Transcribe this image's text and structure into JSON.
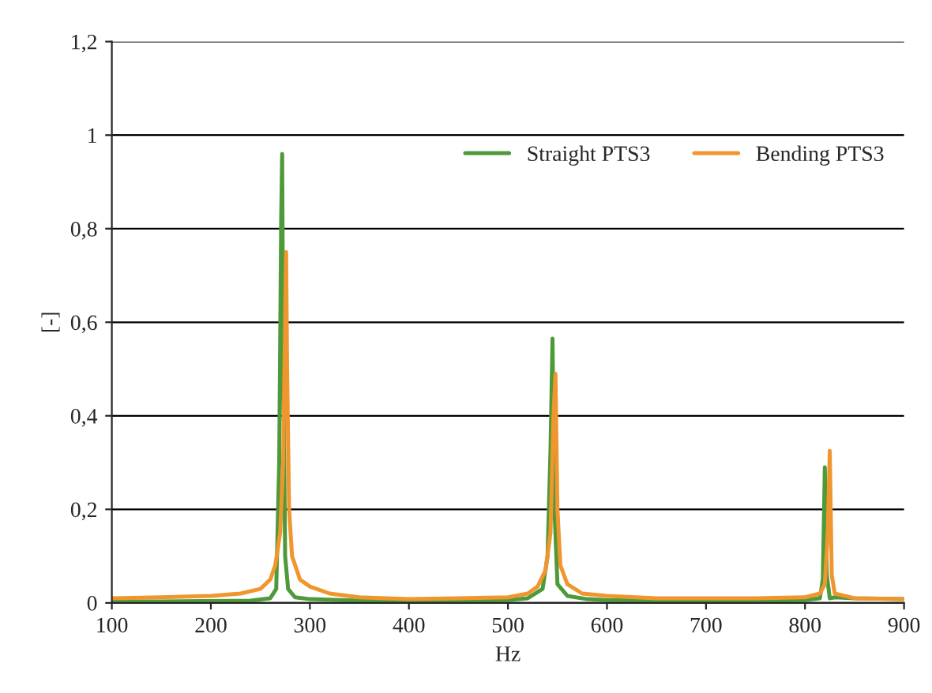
{
  "chart_data": {
    "type": "line",
    "xlabel": "Hz",
    "ylabel": "[-]",
    "xlim": [
      100,
      900
    ],
    "ylim": [
      0,
      1.2
    ],
    "xticks": [
      100,
      200,
      300,
      400,
      500,
      600,
      700,
      800,
      900
    ],
    "yticks": [
      {
        "value": 0,
        "label": "0"
      },
      {
        "value": 0.2,
        "label": "0,2"
      },
      {
        "value": 0.4,
        "label": "0,4"
      },
      {
        "value": 0.6,
        "label": "0,6"
      },
      {
        "value": 0.8,
        "label": "0,8"
      },
      {
        "value": 1,
        "label": "1"
      },
      {
        "value": 1.2,
        "label": "1,2"
      }
    ],
    "grid": "y",
    "legend": "top right",
    "marker": "none",
    "line_style": "solid",
    "series": [
      {
        "name": "Straight PTS3",
        "color": "#4e9a3a",
        "x": [
          100,
          150,
          200,
          240,
          260,
          266,
          269,
          271,
          272,
          273,
          275,
          278,
          285,
          300,
          350,
          400,
          450,
          500,
          520,
          535,
          540,
          543,
          545,
          547,
          550,
          560,
          580,
          600,
          650,
          700,
          750,
          800,
          815,
          818,
          820,
          822,
          825,
          830,
          850,
          900
        ],
        "values": [
          0.003,
          0.003,
          0.004,
          0.005,
          0.01,
          0.03,
          0.3,
          0.82,
          0.96,
          0.55,
          0.1,
          0.03,
          0.012,
          0.008,
          0.005,
          0.003,
          0.005,
          0.006,
          0.01,
          0.03,
          0.1,
          0.33,
          0.565,
          0.2,
          0.04,
          0.015,
          0.008,
          0.006,
          0.005,
          0.005,
          0.005,
          0.006,
          0.01,
          0.05,
          0.29,
          0.06,
          0.01,
          0.012,
          0.01,
          0.008
        ]
      },
      {
        "name": "Bending PTS3",
        "color": "#f0962e",
        "x": [
          100,
          150,
          200,
          230,
          250,
          260,
          265,
          270,
          273,
          275,
          276,
          277,
          279,
          282,
          290,
          300,
          320,
          350,
          400,
          450,
          500,
          520,
          530,
          538,
          543,
          546,
          548,
          550,
          553,
          560,
          575,
          600,
          650,
          700,
          750,
          800,
          815,
          820,
          823,
          825,
          827,
          830,
          850,
          900
        ],
        "values": [
          0.01,
          0.012,
          0.015,
          0.02,
          0.03,
          0.05,
          0.08,
          0.15,
          0.3,
          0.6,
          0.75,
          0.5,
          0.2,
          0.1,
          0.05,
          0.035,
          0.02,
          0.012,
          0.008,
          0.01,
          0.012,
          0.02,
          0.035,
          0.07,
          0.15,
          0.4,
          0.49,
          0.2,
          0.08,
          0.04,
          0.02,
          0.015,
          0.01,
          0.01,
          0.01,
          0.012,
          0.02,
          0.04,
          0.15,
          0.325,
          0.06,
          0.02,
          0.01,
          0.008
        ]
      }
    ]
  }
}
